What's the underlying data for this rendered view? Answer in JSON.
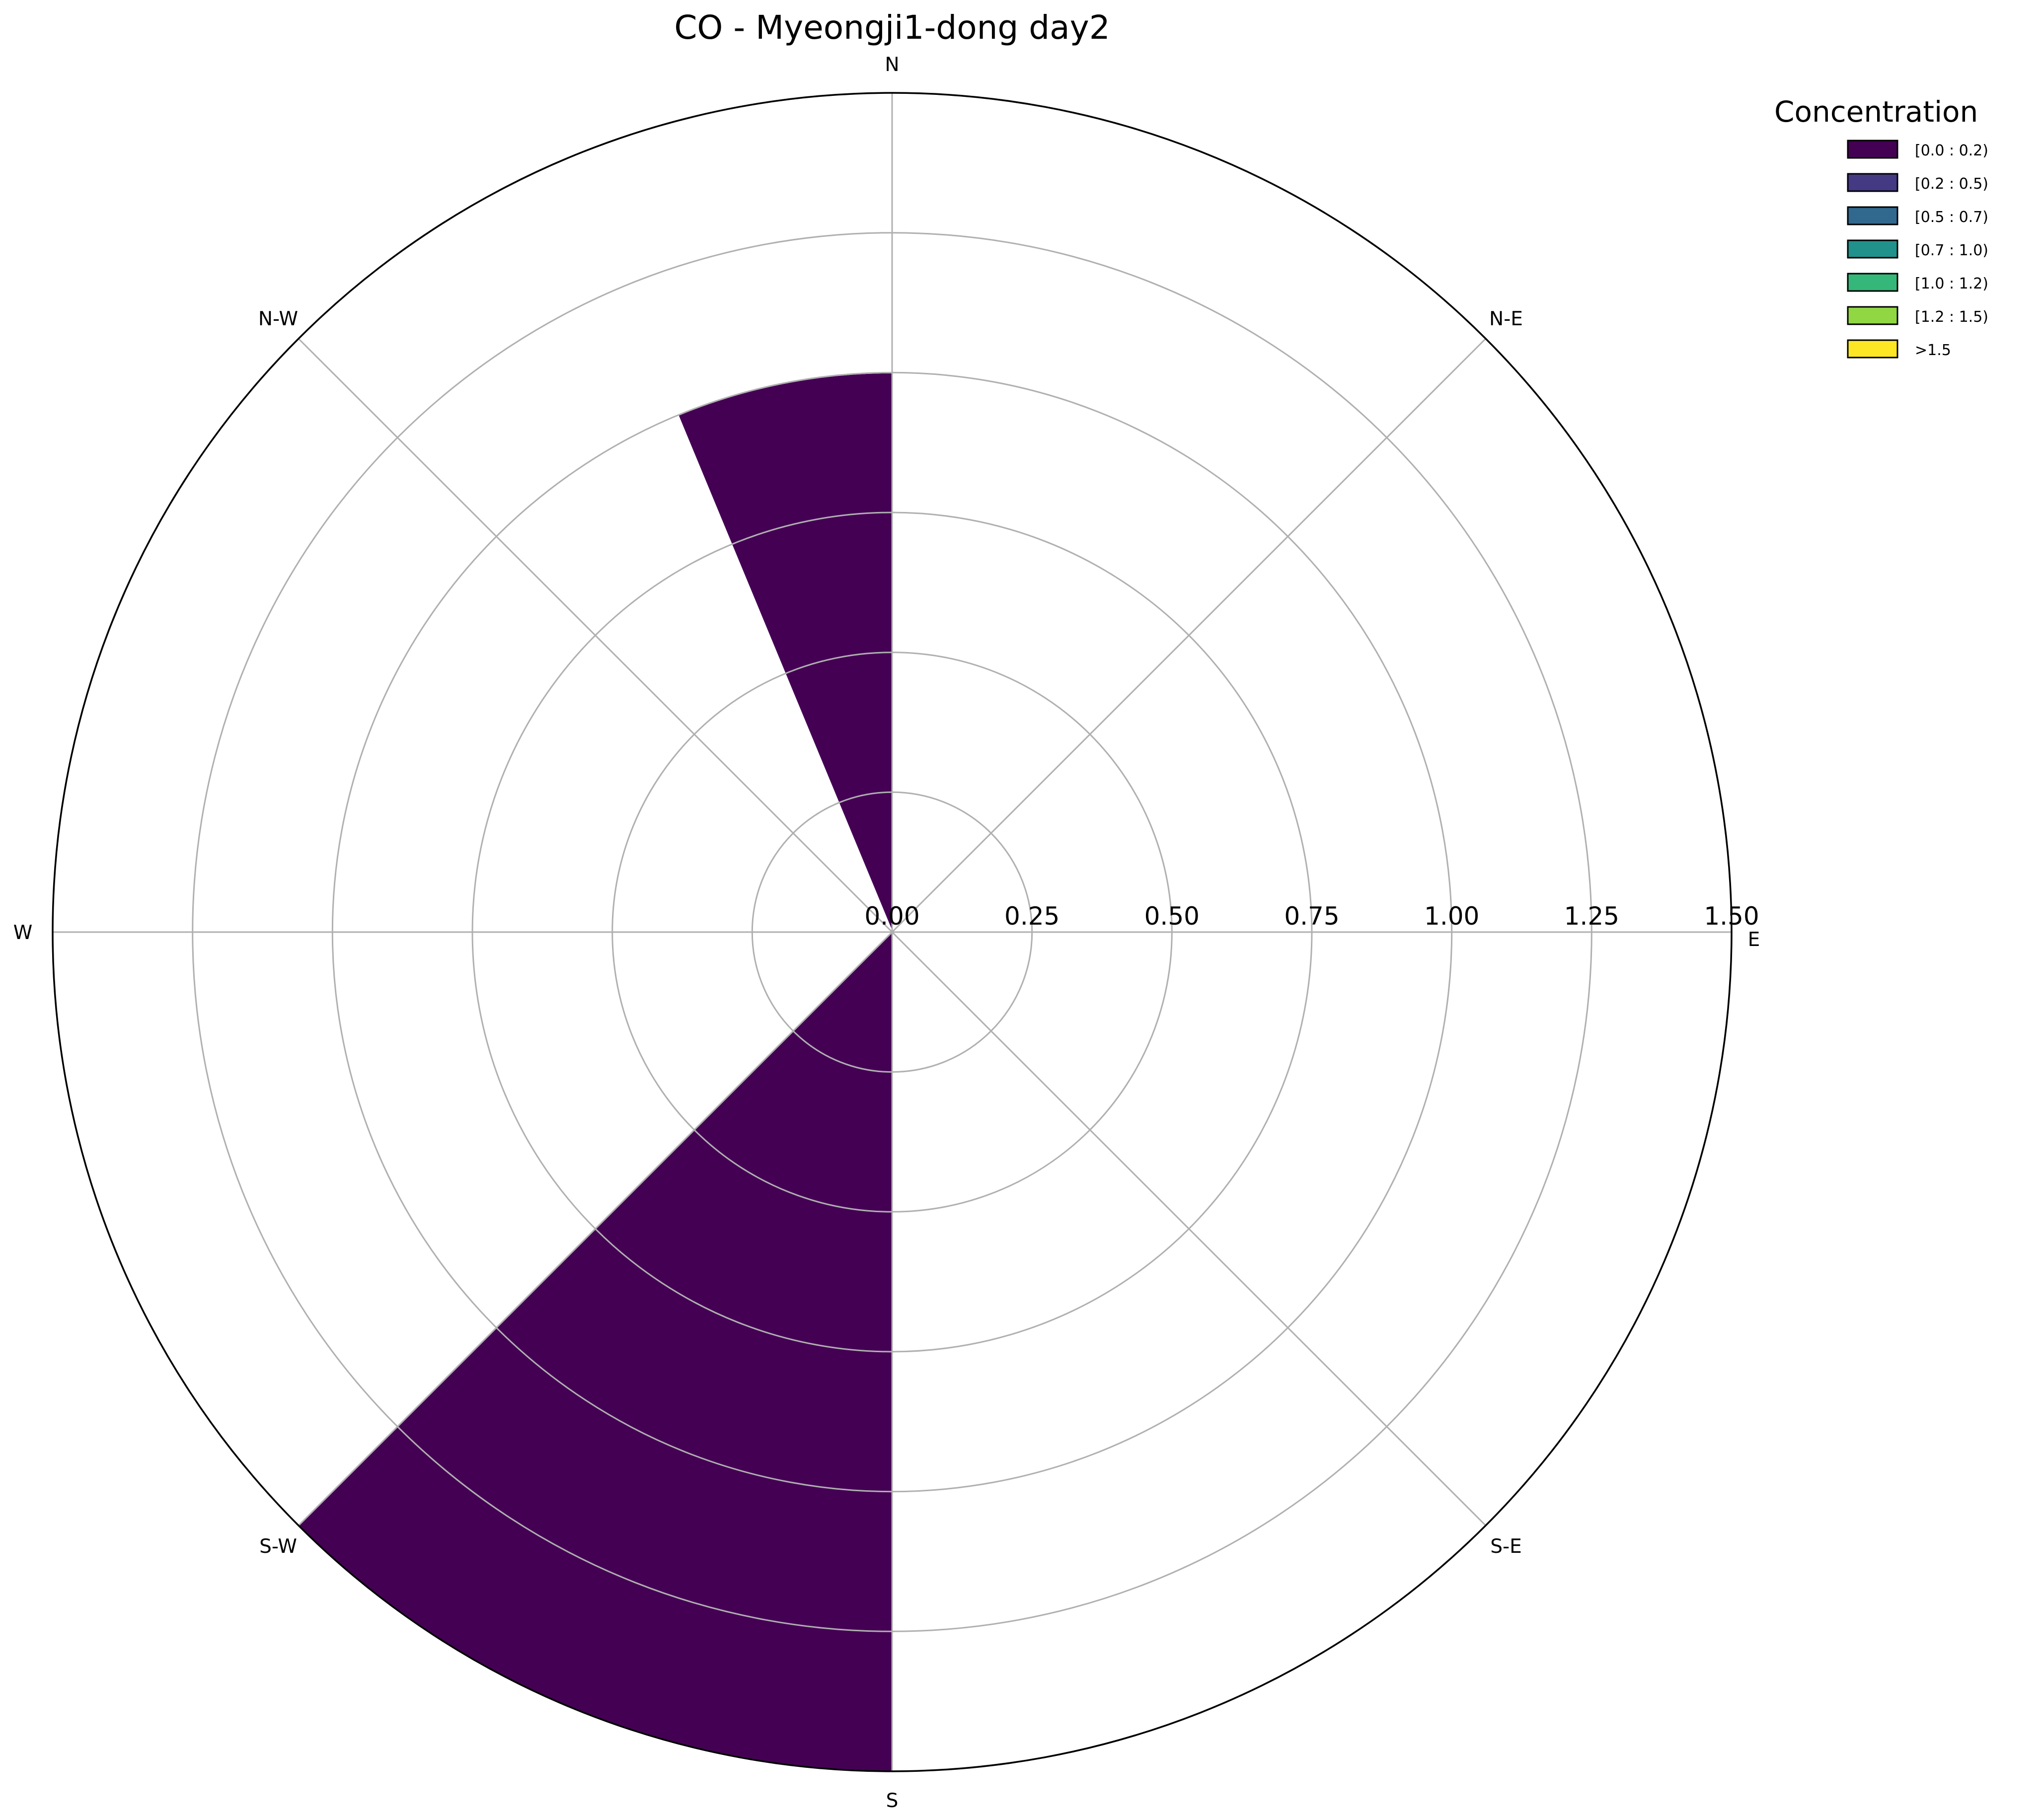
{
  "chart_data": {
    "type": "windrose",
    "title": "CO - Myeongji1-dong day2",
    "directions": [
      "E",
      "N-E",
      "N",
      "N-W",
      "W",
      "S-W",
      "S",
      "S-E"
    ],
    "r_ticks": [
      "0.00",
      "0.25",
      "0.50",
      "0.75",
      "1.00",
      "1.25",
      "1.50"
    ],
    "rlim": [
      0,
      1.5
    ],
    "grid": true,
    "legend": {
      "title": "Concentration",
      "placement": "top-right",
      "entries": [
        {
          "label": "[0.0 : 0.2)",
          "color": "#440154"
        },
        {
          "label": "[0.2 : 0.5)",
          "color": "#443983"
        },
        {
          "label": "[0.5 : 0.7)",
          "color": "#31688e"
        },
        {
          "label": "[0.7 : 1.0)",
          "color": "#21918c"
        },
        {
          "label": "[1.0 : 1.2)",
          "color": "#35b779"
        },
        {
          "label": "[1.2 : 1.5)",
          "color": "#90d743"
        },
        {
          "label": ">1.5",
          "color": "#fde725"
        }
      ]
    },
    "bars": [
      {
        "start_deg": 90,
        "end_deg": 112.5,
        "value": 1.0,
        "bin": 0
      },
      {
        "start_deg": 225,
        "end_deg": 270,
        "value": 1.5,
        "bin": 0
      }
    ]
  }
}
